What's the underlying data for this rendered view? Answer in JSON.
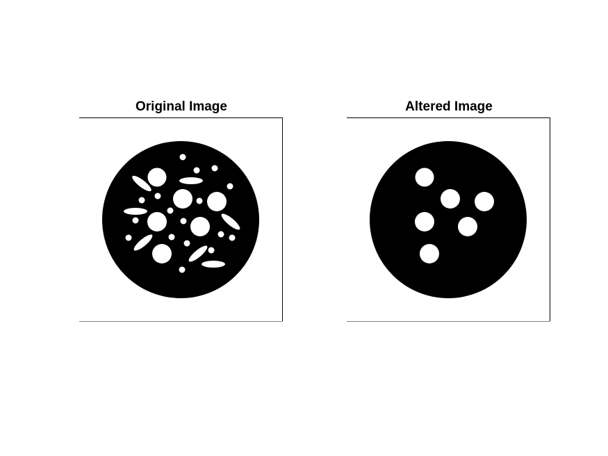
{
  "figure": {
    "background_color": "#ffffff",
    "foreground_color": "#000000",
    "panels": [
      {
        "title": "Original Image",
        "content": "black disk with many white circular and elliptical holes"
      },
      {
        "title": "Altered Image",
        "content": "black disk with six white circular holes (small objects and ellipses removed)"
      }
    ]
  }
}
